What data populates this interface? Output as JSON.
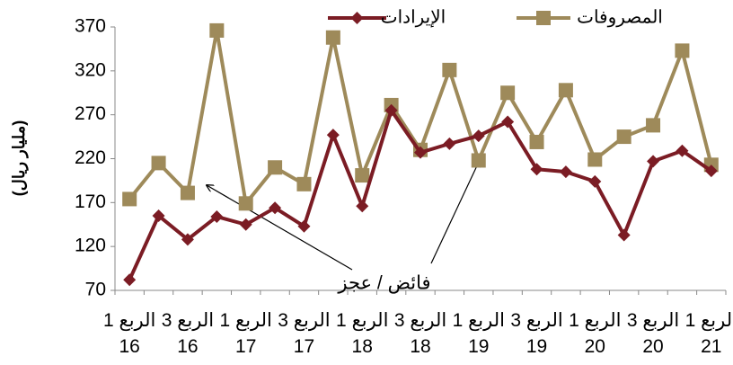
{
  "chart_data": {
    "type": "line",
    "y_label": "(مليار ريال)",
    "annotation": "فائض / عجز",
    "categories": [
      "الربع 1 16",
      null,
      "الربع 3 16",
      null,
      "الربع 1 17",
      null,
      "الربع 3 17",
      null,
      "الربع 1 18",
      null,
      "الربع 3 18",
      null,
      "الربع 1 19",
      null,
      "الربع 3 19",
      null,
      "الربع 1 20",
      null,
      "الربع 3 20",
      null,
      "الربع 1 21"
    ],
    "series": [
      {
        "name": "الإيرادات",
        "color": "#7b1c24",
        "marker": "diamond",
        "values": [
          82,
          155,
          128,
          154,
          145,
          164,
          143,
          247,
          166,
          275,
          227,
          237,
          246,
          262,
          208,
          205,
          194,
          133,
          217,
          229,
          206
        ]
      },
      {
        "name": "المصروفات",
        "color": "#9e8a5a",
        "marker": "square",
        "values": [
          174,
          215,
          181,
          366,
          169,
          210,
          191,
          358,
          201,
          281,
          230,
          321,
          218,
          295,
          239,
          298,
          219,
          245,
          258,
          343,
          213
        ]
      }
    ],
    "ylim": [
      70,
      370
    ],
    "yticks": [
      70,
      120,
      170,
      220,
      270,
      320,
      370
    ],
    "grid": false
  }
}
